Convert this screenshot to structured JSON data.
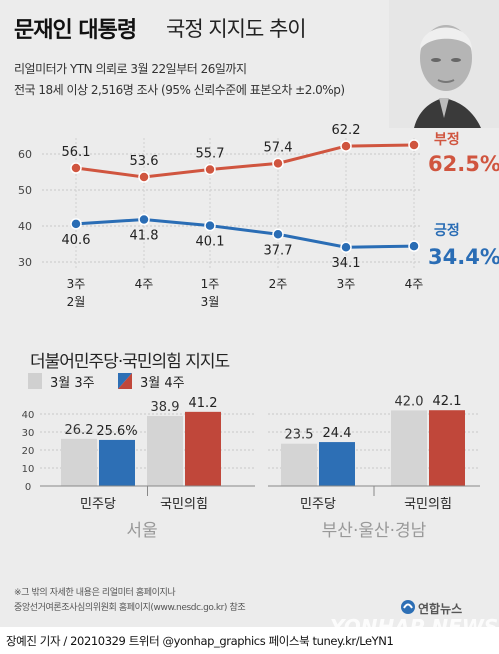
{
  "title_bold": "문재인 대통령",
  "title_rest": "국정 지지도 추이",
  "subtitle_line1": "리얼미터가 YTN 의뢰로 3월 22일부터 26일까지",
  "subtitle_line2": "전국 18세 이상 2,516명 조사 (95% 신뢰수준에 표본오차 ±2.0%p)",
  "section2_title": "더불어민주당·국민의힘 지지도",
  "note_line1": "※그 밖의 자세한 내용은 리얼미터 홈페이지나",
  "note_line2": "중앙선거여론조사심의위원회 홈페이지(www.nesdc.go.kr) 참조",
  "credit": "장예진 기자 / 20210329 트위터 @yonhap_graphics 페이스북 tuney.kr/LeYN1",
  "logo_text": "연합뉴스",
  "watermark": "YONHAP NEWS",
  "colors": {
    "red": "#c0473a",
    "blue": "#2d6fb5",
    "gray": "#d4d4d4",
    "orange_line": "#d0553f",
    "blue_line": "#2a6db5"
  },
  "chart_data": [
    {
      "type": "line",
      "x": [
        "3주\n2월",
        "4주",
        "1주\n3월",
        "2주",
        "3주",
        "4주"
      ],
      "yticks": [
        30,
        40,
        50,
        60
      ],
      "ylim": [
        27,
        66
      ],
      "grid": true,
      "series": [
        {
          "name": "부정",
          "values": [
            56.1,
            53.6,
            55.7,
            57.4,
            62.2,
            62.5
          ],
          "last_label": "62.5%",
          "color": "#d0553f"
        },
        {
          "name": "긍정",
          "values": [
            40.6,
            41.8,
            40.1,
            37.7,
            34.1,
            34.4
          ],
          "last_label": "34.4%",
          "color": "#2a6db5"
        }
      ]
    },
    {
      "type": "bar",
      "legend": [
        "3월 3주",
        "3월 4주"
      ],
      "yticks": [
        0,
        10,
        20,
        30,
        40
      ],
      "ylim": [
        0,
        45
      ],
      "groups": [
        {
          "region": "서울",
          "categories": [
            "민주당",
            "국민의힘"
          ],
          "series": [
            {
              "name": "3월 3주",
              "values": [
                26.2,
                38.9
              ],
              "labels": [
                "26.2",
                "38.9"
              ]
            },
            {
              "name": "3월 4주",
              "values": [
                25.6,
                41.2
              ],
              "labels": [
                "25.6%",
                "41.2"
              ]
            }
          ]
        },
        {
          "region": "부산·울산·경남",
          "categories": [
            "민주당",
            "국민의힘"
          ],
          "series": [
            {
              "name": "3월 3주",
              "values": [
                23.5,
                42.0
              ],
              "labels": [
                "23.5",
                "42.0"
              ]
            },
            {
              "name": "3월 4주",
              "values": [
                24.4,
                42.1
              ],
              "labels": [
                "24.4",
                "42.1"
              ]
            }
          ]
        }
      ]
    }
  ]
}
